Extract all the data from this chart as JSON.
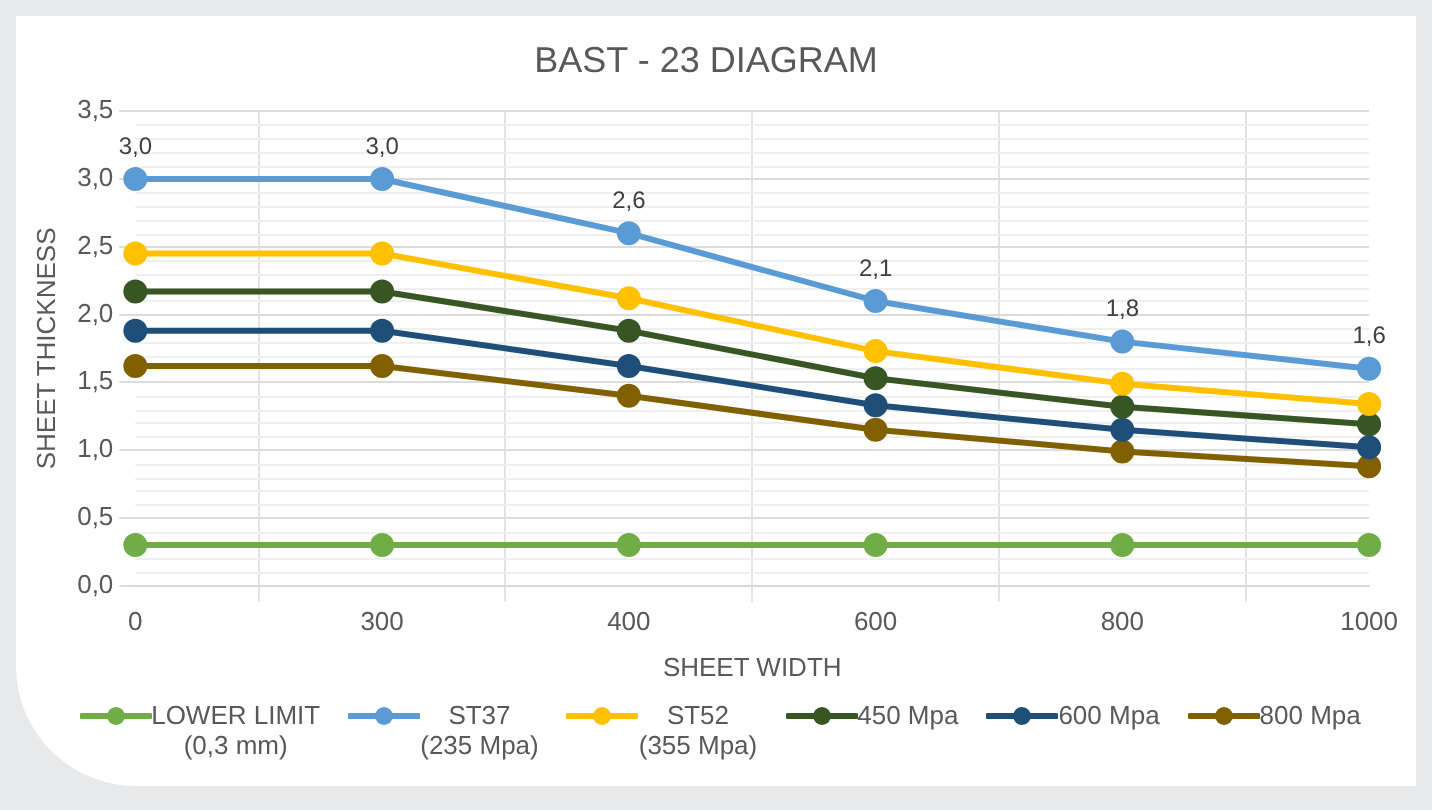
{
  "chart_data": {
    "type": "line",
    "title": "BAST - 23 DIAGRAM",
    "xlabel": "SHEET WIDTH",
    "ylabel": "SHEET THICKNESS",
    "categories": [
      "0",
      "300",
      "400",
      "600",
      "800",
      "1000"
    ],
    "series": [
      {
        "name": "LOWER LIMIT\n(0,3 mm)",
        "color": "#70ad47",
        "values": [
          0.3,
          0.3,
          0.3,
          0.3,
          0.3,
          0.3
        ]
      },
      {
        "name": "ST37\n(235 Mpa)",
        "color": "#5b9bd5",
        "values": [
          3.0,
          3.0,
          2.6,
          2.1,
          1.8,
          1.6
        ],
        "value_labels": [
          "3,0",
          "3,0",
          "2,6",
          "2,1",
          "1,8",
          "1,6"
        ]
      },
      {
        "name": "ST52\n(355 Mpa)",
        "color": "#ffc000",
        "values": [
          2.45,
          2.45,
          2.12,
          1.73,
          1.49,
          1.34
        ]
      },
      {
        "name": "450  Mpa",
        "color": "#375623",
        "values": [
          2.17,
          2.17,
          1.88,
          1.53,
          1.32,
          1.19
        ]
      },
      {
        "name": "600 Mpa",
        "color": "#1f4e79",
        "values": [
          1.88,
          1.88,
          1.62,
          1.33,
          1.15,
          1.02
        ]
      },
      {
        "name": "800 Mpa",
        "color": "#806000",
        "values": [
          1.62,
          1.62,
          1.4,
          1.15,
          0.99,
          0.88
        ]
      }
    ],
    "ylim": [
      0,
      3.5
    ],
    "yticks": [
      {
        "value": 0,
        "label": "0,0"
      },
      {
        "value": 0.5,
        "label": "0,5"
      },
      {
        "value": 1,
        "label": "1,0"
      },
      {
        "value": 1.5,
        "label": "1,5"
      },
      {
        "value": 2,
        "label": "2,0"
      },
      {
        "value": 2.5,
        "label": "2,5"
      },
      {
        "value": 3,
        "label": "3,0"
      },
      {
        "value": 3.5,
        "label": "3,5"
      }
    ],
    "grid": true,
    "legend": "bottom",
    "marker": "circle",
    "line_style": "solid"
  }
}
